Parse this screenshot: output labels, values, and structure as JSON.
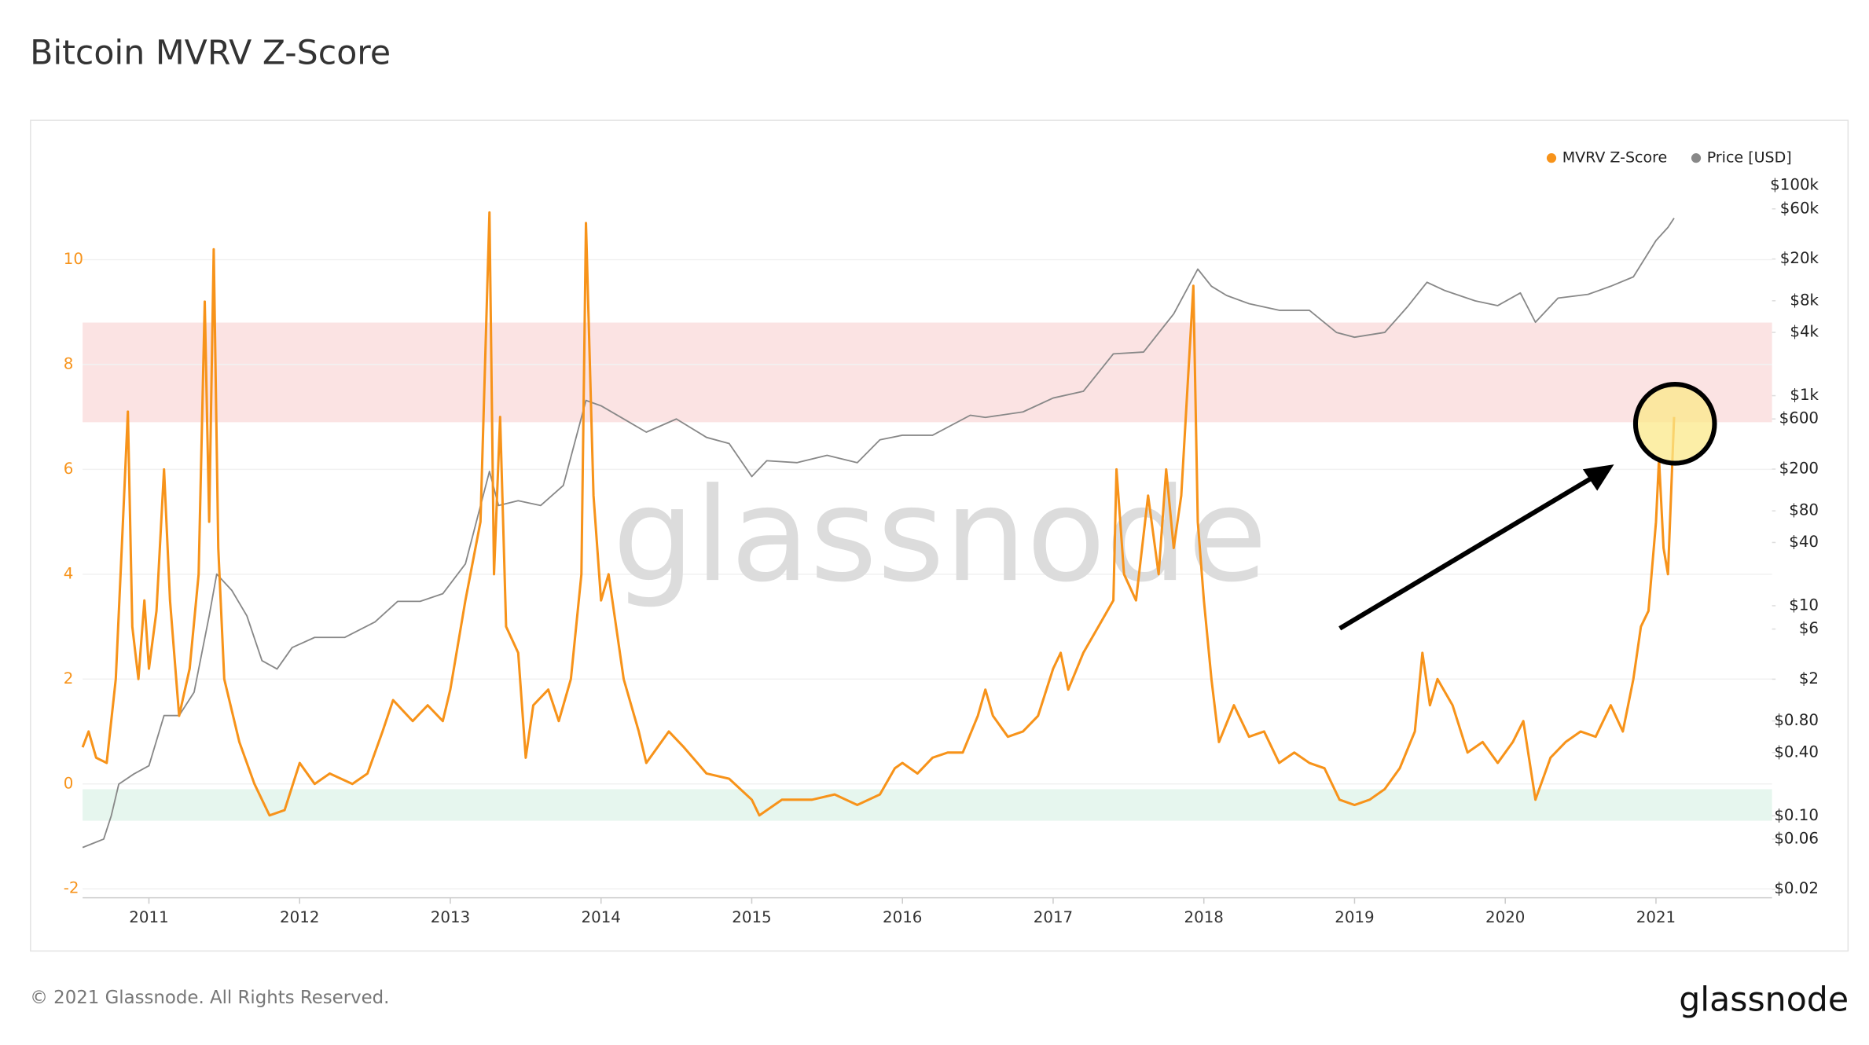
{
  "chart_data": {
    "type": "line",
    "title": "Bitcoin MVRV Z-Score",
    "watermark": "glassnode",
    "legend": "top-right",
    "grid": true,
    "xlim": [
      2010.56,
      2021.77
    ],
    "xticks": [
      2011,
      2012,
      2013,
      2014,
      2015,
      2016,
      2017,
      2018,
      2019,
      2020,
      2021
    ],
    "ylim": [
      -2.17,
      11.87
    ],
    "yticks": [
      -2,
      0,
      2,
      4,
      6,
      8,
      10
    ],
    "y2scale": "log",
    "y2lim": [
      0.0166,
      169000
    ],
    "y2ticks": [
      {
        "value": 100000,
        "label": "$100k"
      },
      {
        "value": 60000,
        "label": "$60k"
      },
      {
        "value": 20000,
        "label": "$20k"
      },
      {
        "value": 8000,
        "label": "$8k"
      },
      {
        "value": 4000,
        "label": "$4k"
      },
      {
        "value": 1000,
        "label": "$1k"
      },
      {
        "value": 600,
        "label": "$600"
      },
      {
        "value": 200,
        "label": "$200"
      },
      {
        "value": 80,
        "label": "$80"
      },
      {
        "value": 40,
        "label": "$40"
      },
      {
        "value": 10,
        "label": "$10"
      },
      {
        "value": 6,
        "label": "$6"
      },
      {
        "value": 2,
        "label": "$2"
      },
      {
        "value": 0.8,
        "label": "$0.80"
      },
      {
        "value": 0.4,
        "label": "$0.40"
      },
      {
        "value": 0.1,
        "label": "$0.10"
      },
      {
        "value": 0.06,
        "label": "$0.06"
      },
      {
        "value": 0.02,
        "label": "$0.02"
      }
    ],
    "bands": [
      {
        "from": 6.9,
        "to": 8.8,
        "color": "#fbe3e3"
      },
      {
        "from": -0.7,
        "to": -0.1,
        "color": "#e6f6ee"
      }
    ],
    "series": [
      {
        "name": "MVRV Z-Score",
        "color": "#f7931a",
        "x": [
          2010.56,
          2010.6,
          2010.65,
          2010.72,
          2010.78,
          2010.82,
          2010.86,
          2010.89,
          2010.93,
          2010.97,
          2011.0,
          2011.05,
          2011.1,
          2011.14,
          2011.2,
          2011.27,
          2011.33,
          2011.37,
          2011.4,
          2011.43,
          2011.46,
          2011.5,
          2011.6,
          2011.7,
          2011.8,
          2011.9,
          2012.0,
          2012.1,
          2012.2,
          2012.35,
          2012.45,
          2012.55,
          2012.62,
          2012.75,
          2012.85,
          2012.95,
          2013.0,
          2013.1,
          2013.2,
          2013.26,
          2013.29,
          2013.33,
          2013.37,
          2013.45,
          2013.5,
          2013.55,
          2013.65,
          2013.72,
          2013.8,
          2013.87,
          2013.9,
          2013.95,
          2014.0,
          2014.05,
          2014.1,
          2014.15,
          2014.25,
          2014.3,
          2014.45,
          2014.55,
          2014.7,
          2014.85,
          2015.0,
          2015.05,
          2015.2,
          2015.4,
          2015.55,
          2015.7,
          2015.85,
          2015.95,
          2016.0,
          2016.1,
          2016.2,
          2016.3,
          2016.4,
          2016.5,
          2016.55,
          2016.6,
          2016.7,
          2016.8,
          2016.9,
          2017.0,
          2017.05,
          2017.1,
          2017.2,
          2017.3,
          2017.4,
          2017.42,
          2017.47,
          2017.55,
          2017.63,
          2017.7,
          2017.75,
          2017.8,
          2017.85,
          2017.93,
          2017.96,
          2018.0,
          2018.05,
          2018.1,
          2018.2,
          2018.3,
          2018.4,
          2018.5,
          2018.6,
          2018.7,
          2018.8,
          2018.9,
          2019.0,
          2019.1,
          2019.2,
          2019.3,
          2019.4,
          2019.45,
          2019.5,
          2019.55,
          2019.65,
          2019.75,
          2019.85,
          2019.95,
          2020.05,
          2020.12,
          2020.2,
          2020.3,
          2020.4,
          2020.5,
          2020.6,
          2020.7,
          2020.78,
          2020.85,
          2020.9,
          2020.95,
          2021.0,
          2021.02,
          2021.05,
          2021.08,
          2021.12
        ],
        "values": [
          0.7,
          1.0,
          0.5,
          0.4,
          2.0,
          4.5,
          7.1,
          3.0,
          2.0,
          3.5,
          2.2,
          3.3,
          6.0,
          3.5,
          1.3,
          2.2,
          4.0,
          9.2,
          5.0,
          10.2,
          4.5,
          2.0,
          0.8,
          0.0,
          -0.6,
          -0.5,
          0.4,
          0.0,
          0.2,
          0.0,
          0.2,
          1.0,
          1.6,
          1.2,
          1.5,
          1.2,
          1.8,
          3.5,
          5.0,
          10.9,
          4.0,
          7.0,
          3.0,
          2.5,
          0.5,
          1.5,
          1.8,
          1.2,
          2.0,
          4.0,
          10.7,
          5.5,
          3.5,
          4.0,
          3.0,
          2.0,
          1.0,
          0.4,
          1.0,
          0.7,
          0.2,
          0.1,
          -0.3,
          -0.6,
          -0.3,
          -0.3,
          -0.2,
          -0.4,
          -0.2,
          0.3,
          0.4,
          0.2,
          0.5,
          0.6,
          0.6,
          1.3,
          1.8,
          1.3,
          0.9,
          1.0,
          1.3,
          2.2,
          2.5,
          1.8,
          2.5,
          3.0,
          3.5,
          6.0,
          4.0,
          3.5,
          5.5,
          4.0,
          6.0,
          4.5,
          5.5,
          9.5,
          5.0,
          3.5,
          2.0,
          0.8,
          1.5,
          0.9,
          1.0,
          0.4,
          0.6,
          0.4,
          0.3,
          -0.3,
          -0.4,
          -0.3,
          -0.1,
          0.3,
          1.0,
          2.5,
          1.5,
          2.0,
          1.5,
          0.6,
          0.8,
          0.4,
          0.8,
          1.2,
          -0.3,
          0.5,
          0.8,
          1.0,
          0.9,
          1.5,
          1.0,
          2.0,
          3.0,
          3.3,
          5.0,
          6.2,
          4.5,
          4.0,
          7.0
        ]
      },
      {
        "name": "Price [USD]",
        "color": "#888888",
        "axis": "y2",
        "x": [
          2010.56,
          2010.7,
          2010.75,
          2010.8,
          2010.9,
          2011.0,
          2011.1,
          2011.2,
          2011.3,
          2011.4,
          2011.45,
          2011.55,
          2011.65,
          2011.75,
          2011.85,
          2011.95,
          2012.1,
          2012.3,
          2012.5,
          2012.65,
          2012.8,
          2012.95,
          2013.1,
          2013.26,
          2013.32,
          2013.45,
          2013.6,
          2013.75,
          2013.9,
          2014.0,
          2014.15,
          2014.3,
          2014.5,
          2014.7,
          2014.85,
          2015.0,
          2015.1,
          2015.3,
          2015.5,
          2015.7,
          2015.85,
          2016.0,
          2016.2,
          2016.45,
          2016.55,
          2016.8,
          2017.0,
          2017.2,
          2017.4,
          2017.6,
          2017.8,
          2017.96,
          2018.05,
          2018.15,
          2018.3,
          2018.5,
          2018.7,
          2018.88,
          2019.0,
          2019.2,
          2019.35,
          2019.48,
          2019.6,
          2019.8,
          2019.95,
          2020.1,
          2020.2,
          2020.35,
          2020.55,
          2020.7,
          2020.85,
          2021.0,
          2021.08,
          2021.12
        ],
        "values": [
          0.05,
          0.06,
          0.1,
          0.2,
          0.25,
          0.3,
          0.9,
          0.9,
          1.5,
          8,
          20,
          14,
          8,
          3,
          2.5,
          4,
          5,
          5,
          7,
          11,
          11,
          13,
          25,
          190,
          90,
          100,
          90,
          140,
          900,
          800,
          600,
          450,
          600,
          400,
          350,
          170,
          240,
          230,
          270,
          230,
          380,
          420,
          420,
          650,
          620,
          700,
          950,
          1100,
          2500,
          2600,
          6000,
          16000,
          11000,
          9000,
          7500,
          6500,
          6500,
          4000,
          3600,
          4000,
          7000,
          12000,
          10000,
          8000,
          7200,
          9500,
          5000,
          8500,
          9200,
          11000,
          13500,
          30000,
          40000,
          49000
        ]
      }
    ]
  },
  "footer": {
    "copyright": "© 2021 Glassnode. All Rights Reserved.",
    "logo": "glassnode"
  }
}
